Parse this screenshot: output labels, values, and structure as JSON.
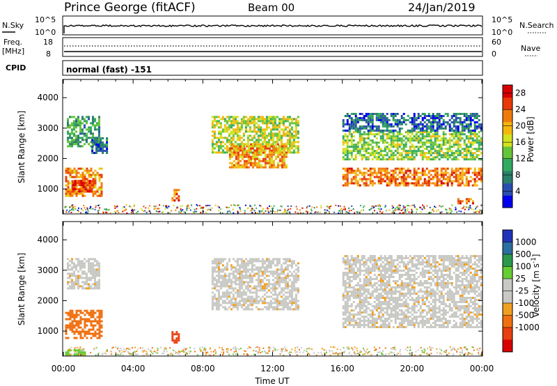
{
  "header": {
    "station": "Prince George (fitACF)",
    "beam": "Beam 00",
    "date": "24/Jan/2019"
  },
  "status_panels": {
    "nsky": {
      "label": "N.Sky",
      "ticks": [
        "10^5",
        "10^0"
      ]
    },
    "nsearch": {
      "label": "N.Search",
      "ticks": [
        "10^5",
        "10^0"
      ]
    },
    "freq": {
      "label_line1": "Freq.",
      "label_line2": "[MHz]",
      "ticks": [
        "18",
        "8"
      ]
    },
    "nave": {
      "label": "Nave",
      "ticks": [
        "60",
        "0"
      ]
    },
    "cpid": {
      "label": "CPID",
      "value": "normal (fast) -151"
    }
  },
  "chart_data": [
    {
      "type": "heatmap",
      "name": "Power",
      "ylabel": "Slant Range [km]",
      "xlabel": "Time UT",
      "xticks": [
        "00:00",
        "04:00",
        "08:00",
        "12:00",
        "16:00",
        "20:00",
        "00:00"
      ],
      "yticks": [
        "1000",
        "2000",
        "3000",
        "4000"
      ],
      "xlim": [
        0,
        24
      ],
      "ylim": [
        180,
        4600
      ],
      "colorbar": {
        "label": "Power [dB]",
        "ticks": [
          "4",
          "8",
          "12",
          "16",
          "20",
          "24",
          "28"
        ],
        "range": [
          0,
          30
        ],
        "colors": [
          "#0000ee",
          "#2a4fb0",
          "#2a7f6a",
          "#33a860",
          "#66c43a",
          "#d2e21e",
          "#f5b60f",
          "#f07b0c",
          "#e83a08",
          "#d80000"
        ]
      },
      "regions": [
        {
          "t0": 0.1,
          "t1": 2.2,
          "r0": 800,
          "r1": 1700,
          "power": 22
        },
        {
          "t0": 0.5,
          "t1": 1.6,
          "r0": 950,
          "r1": 1300,
          "power": 27
        },
        {
          "t0": 0.2,
          "t1": 2.0,
          "r0": 2400,
          "r1": 3400,
          "power": 10
        },
        {
          "t0": 1.6,
          "t1": 2.5,
          "r0": 2200,
          "r1": 2700,
          "power": 6
        },
        {
          "t0": 6.2,
          "t1": 6.6,
          "r0": 600,
          "r1": 1000,
          "power": 24
        },
        {
          "t0": 8.5,
          "t1": 13.5,
          "r0": 2200,
          "r1": 3400,
          "power": 16
        },
        {
          "t0": 9.5,
          "t1": 12.8,
          "r0": 1700,
          "r1": 2500,
          "power": 21
        },
        {
          "t0": 16.0,
          "t1": 24.0,
          "r0": 1100,
          "r1": 1700,
          "power": 23
        },
        {
          "t0": 16.0,
          "t1": 24.0,
          "r0": 2000,
          "r1": 2900,
          "power": 14
        },
        {
          "t0": 16.0,
          "t1": 24.0,
          "r0": 2900,
          "r1": 3500,
          "power": 6
        },
        {
          "t0": 22.6,
          "t1": 23.5,
          "r0": 550,
          "r1": 700,
          "power": 25
        }
      ]
    },
    {
      "type": "heatmap",
      "name": "Velocity",
      "ylabel": "Slant Range [km]",
      "xlabel": "Time UT",
      "xticks": [
        "00:00",
        "04:00",
        "08:00",
        "12:00",
        "16:00",
        "20:00",
        "00:00"
      ],
      "yticks": [
        "1000",
        "2000",
        "3000",
        "4000"
      ],
      "xlim": [
        0,
        24
      ],
      "ylim": [
        180,
        4600
      ],
      "colorbar": {
        "label": "Velocity [m s^-1]",
        "ticks": [
          "1000",
          "500",
          "100",
          "25",
          "-25",
          "-100",
          "-500",
          "-1000"
        ],
        "colors": [
          "#2233bb",
          "#2d6ea0",
          "#2a9a4a",
          "#66cc33",
          "#c8c8c4",
          "#c8c8c4",
          "#f0a020",
          "#f07010",
          "#e84010",
          "#d80000"
        ]
      },
      "regions": [
        {
          "t0": 0.1,
          "t1": 2.2,
          "r0": 800,
          "r1": 1700,
          "velocity": -150
        },
        {
          "t0": 0.2,
          "t1": 2.0,
          "r0": 2400,
          "r1": 3400,
          "velocity": 0
        },
        {
          "t0": 6.2,
          "t1": 6.6,
          "r0": 600,
          "r1": 1000,
          "velocity": -400
        },
        {
          "t0": 8.5,
          "t1": 13.5,
          "r0": 1700,
          "r1": 3400,
          "velocity": 0
        },
        {
          "t0": 16.0,
          "t1": 24.0,
          "r0": 1100,
          "r1": 3500,
          "velocity": 0
        },
        {
          "t0": 0.1,
          "t1": 1.2,
          "r0": 200,
          "r1": 400,
          "velocity": 150
        }
      ]
    }
  ]
}
